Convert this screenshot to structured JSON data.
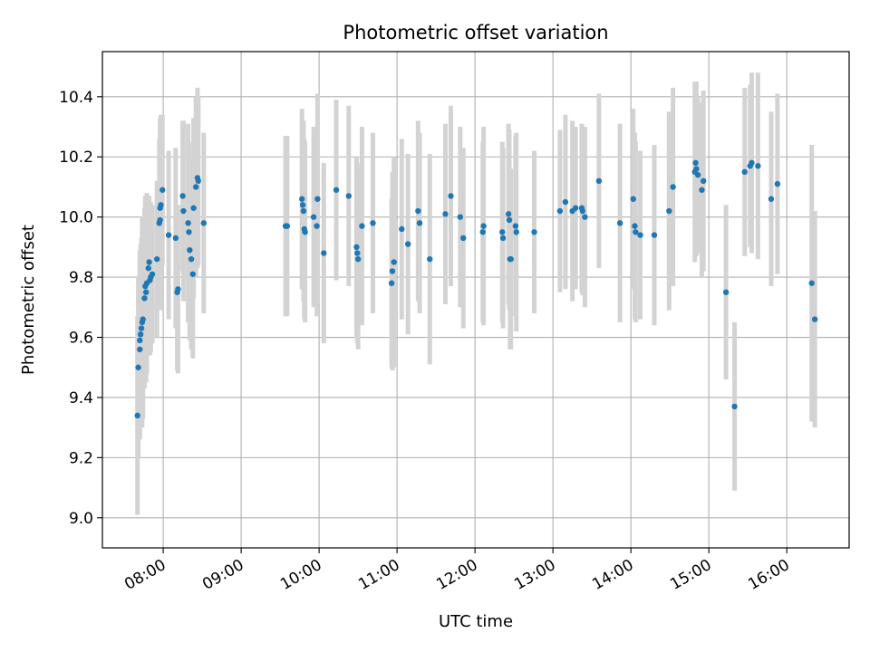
{
  "chart_data": {
    "type": "scatter",
    "title": "Photometric offset variation",
    "xlabel": "UTC time",
    "ylabel": "Photometric offset",
    "x_unit": "hours (UTC, decimal)",
    "xlim": [
      7.22,
      16.8
    ],
    "ylim": [
      8.9,
      10.55
    ],
    "x_ticks": [
      8,
      9,
      10,
      11,
      12,
      13,
      14,
      15,
      16
    ],
    "x_tick_labels": [
      "08:00",
      "09:00",
      "10:00",
      "11:00",
      "12:00",
      "13:00",
      "14:00",
      "15:00",
      "16:00"
    ],
    "y_ticks": [
      9.0,
      9.2,
      9.4,
      9.6,
      9.8,
      10.0,
      10.2,
      10.4
    ],
    "y_tick_labels": [
      "9.0",
      "9.2",
      "9.4",
      "9.6",
      "9.8",
      "10.0",
      "10.2",
      "10.4"
    ],
    "grid": true,
    "legend": "none",
    "colors": {
      "point": "#1f77b4",
      "error_bar": "#d3d3d3",
      "grid": "#b0b0b0"
    },
    "series": [
      {
        "points": [
          [
            7.67,
            9.34,
            0.33
          ],
          [
            7.68,
            9.5,
            0.3
          ],
          [
            7.7,
            9.56,
            0.3
          ],
          [
            7.7,
            9.59,
            0.3
          ],
          [
            7.71,
            9.61,
            0.3
          ],
          [
            7.72,
            9.63,
            0.3
          ],
          [
            7.73,
            9.65,
            0.35
          ],
          [
            7.74,
            9.66,
            0.33
          ],
          [
            7.76,
            9.73,
            0.3
          ],
          [
            7.77,
            9.77,
            0.3
          ],
          [
            7.78,
            9.75,
            0.3
          ],
          [
            7.79,
            9.78,
            0.3
          ],
          [
            7.81,
            9.83,
            0.23
          ],
          [
            7.82,
            9.85,
            0.22
          ],
          [
            7.83,
            9.79,
            0.25
          ],
          [
            7.84,
            9.8,
            0.25
          ],
          [
            7.86,
            9.81,
            0.23
          ],
          [
            7.92,
            9.86,
            0.26
          ],
          [
            7.95,
            9.98,
            0.28
          ],
          [
            7.96,
            9.99,
            0.3
          ],
          [
            7.96,
            10.03,
            0.3
          ],
          [
            7.97,
            10.04,
            0.3
          ],
          [
            7.99,
            10.09,
            0.25
          ],
          [
            8.07,
            9.94,
            0.28
          ],
          [
            8.16,
            9.93,
            0.3
          ],
          [
            8.18,
            9.75,
            0.26
          ],
          [
            8.19,
            9.76,
            0.28
          ],
          [
            8.25,
            10.07,
            0.25
          ],
          [
            8.26,
            10.02,
            0.3
          ],
          [
            8.32,
            9.98,
            0.33
          ],
          [
            8.33,
            9.95,
            0.3
          ],
          [
            8.34,
            9.89,
            0.3
          ],
          [
            8.36,
            9.86,
            0.3
          ],
          [
            8.38,
            9.81,
            0.28
          ],
          [
            8.39,
            10.03,
            0.3
          ],
          [
            8.42,
            10.1,
            0.3
          ],
          [
            8.44,
            10.13,
            0.3
          ],
          [
            8.45,
            10.12,
            0.28
          ],
          [
            8.52,
            9.98,
            0.3
          ],
          [
            9.57,
            9.97,
            0.3
          ],
          [
            9.59,
            9.97,
            0.3
          ],
          [
            9.78,
            10.06,
            0.3
          ],
          [
            9.79,
            10.04,
            0.28
          ],
          [
            9.8,
            10.02,
            0.3
          ],
          [
            9.81,
            9.96,
            0.3
          ],
          [
            9.82,
            9.95,
            0.3
          ],
          [
            9.93,
            10.0,
            0.3
          ],
          [
            9.97,
            9.97,
            0.3
          ],
          [
            9.98,
            10.06,
            0.35
          ],
          [
            10.06,
            9.88,
            0.3
          ],
          [
            10.22,
            10.09,
            0.3
          ],
          [
            10.38,
            10.07,
            0.3
          ],
          [
            10.48,
            9.9,
            0.3
          ],
          [
            10.49,
            9.88,
            0.3
          ],
          [
            10.5,
            9.86,
            0.3
          ],
          [
            10.55,
            9.97,
            0.33
          ],
          [
            10.69,
            9.98,
            0.3
          ],
          [
            10.93,
            9.78,
            0.28
          ],
          [
            10.94,
            9.82,
            0.33
          ],
          [
            10.96,
            9.85,
            0.35
          ],
          [
            11.06,
            9.96,
            0.3
          ],
          [
            11.14,
            9.91,
            0.3
          ],
          [
            11.27,
            10.02,
            0.3
          ],
          [
            11.29,
            9.98,
            0.3
          ],
          [
            11.42,
            9.86,
            0.35
          ],
          [
            11.62,
            10.01,
            0.3
          ],
          [
            11.69,
            10.07,
            0.3
          ],
          [
            11.81,
            10.0,
            0.3
          ],
          [
            11.85,
            9.93,
            0.3
          ],
          [
            12.1,
            9.95,
            0.3
          ],
          [
            12.11,
            9.97,
            0.33
          ],
          [
            12.35,
            9.95,
            0.3
          ],
          [
            12.36,
            9.93,
            0.3
          ],
          [
            12.43,
            10.01,
            0.3
          ],
          [
            12.44,
            9.99,
            0.3
          ],
          [
            12.45,
            9.86,
            0.3
          ],
          [
            12.46,
            9.86,
            0.3
          ],
          [
            12.52,
            9.97,
            0.3
          ],
          [
            12.53,
            9.95,
            0.33
          ],
          [
            12.76,
            9.95,
            0.27
          ],
          [
            13.09,
            10.02,
            0.27
          ],
          [
            13.16,
            10.05,
            0.29
          ],
          [
            13.25,
            10.02,
            0.3
          ],
          [
            13.29,
            10.03,
            0.27
          ],
          [
            13.37,
            10.03,
            0.28
          ],
          [
            13.38,
            10.02,
            0.28
          ],
          [
            13.41,
            10.0,
            0.3
          ],
          [
            13.59,
            10.12,
            0.29
          ],
          [
            13.86,
            9.98,
            0.33
          ],
          [
            14.03,
            10.06,
            0.3
          ],
          [
            14.05,
            9.97,
            0.31
          ],
          [
            14.06,
            9.95,
            0.3
          ],
          [
            14.12,
            9.94,
            0.28
          ],
          [
            14.3,
            9.94,
            0.3
          ],
          [
            14.49,
            10.02,
            0.33
          ],
          [
            14.54,
            10.1,
            0.33
          ],
          [
            14.82,
            10.15,
            0.3
          ],
          [
            14.83,
            10.18,
            0.27
          ],
          [
            14.84,
            10.16,
            0.29
          ],
          [
            14.86,
            10.14,
            0.26
          ],
          [
            14.91,
            10.09,
            0.29
          ],
          [
            14.93,
            10.12,
            0.3
          ],
          [
            15.22,
            9.75,
            0.29
          ],
          [
            15.33,
            9.37,
            0.28
          ],
          [
            15.46,
            10.15,
            0.28
          ],
          [
            15.53,
            10.17,
            0.27
          ],
          [
            15.55,
            10.18,
            0.3
          ],
          [
            15.63,
            10.17,
            0.31
          ],
          [
            15.8,
            10.06,
            0.29
          ],
          [
            15.88,
            10.11,
            0.3
          ],
          [
            16.32,
            9.78,
            0.46
          ],
          [
            16.36,
            9.66,
            0.36
          ]
        ]
      }
    ]
  }
}
